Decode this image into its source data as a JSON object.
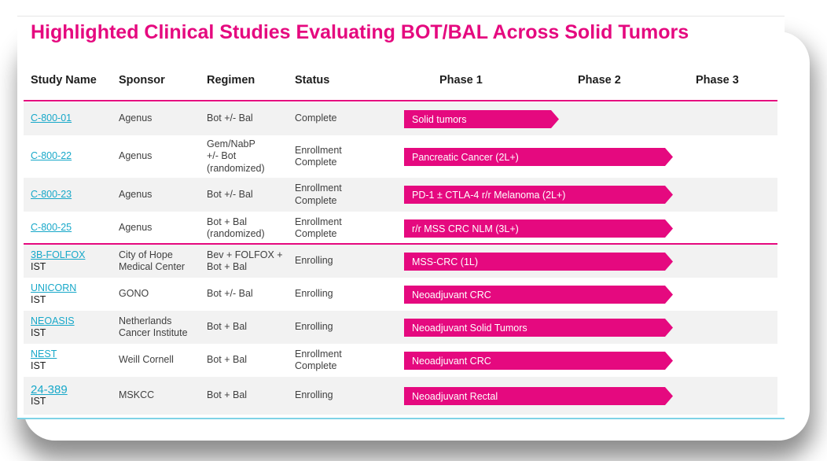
{
  "title": "Highlighted Clinical Studies Evaluating BOT/BAL Across Solid Tumors",
  "headers": {
    "study": "Study Name",
    "sponsor": "Sponsor",
    "regimen": "Regimen",
    "status": "Status",
    "phase1": "Phase 1",
    "phase2": "Phase 2",
    "phase3": "Phase 3"
  },
  "rows": [
    {
      "study": "C-800-01",
      "ist": "",
      "sponsor": "Agenus",
      "regimen": "Bot +/- Bal",
      "status": "Complete",
      "bar_label": "Solid tumors",
      "bar_phase": 1
    },
    {
      "study": "C-800-22",
      "ist": "",
      "sponsor": "Agenus",
      "regimen": "Gem/NabP\n+/- Bot\n(randomized)",
      "status": "Enrollment\nComplete",
      "bar_label": "Pancreatic Cancer (2L+)",
      "bar_phase": 2
    },
    {
      "study": "C-800-23",
      "ist": "",
      "sponsor": "Agenus",
      "regimen": "Bot +/- Bal",
      "status": "Enrollment\nComplete",
      "bar_label": "PD-1 ± CTLA-4 r/r Melanoma (2L+)",
      "bar_phase": 2
    },
    {
      "study": "C-800-25",
      "ist": "",
      "sponsor": "Agenus",
      "regimen": "Bot + Bal\n(randomized)",
      "status": "Enrollment\nComplete",
      "bar_label": "r/r MSS CRC NLM (3L+)",
      "bar_phase": 2
    },
    {
      "study": "3B-FOLFOX",
      "ist": "IST",
      "sponsor": "City of Hope\nMedical Center",
      "regimen": "Bev + FOLFOX +\nBot + Bal",
      "status": "Enrolling",
      "bar_label": "MSS-CRC (1L)",
      "bar_phase": 2
    },
    {
      "study": "UNICORN",
      "ist": "IST",
      "sponsor": "GONO",
      "regimen": "Bot +/- Bal",
      "status": "Enrolling",
      "bar_label": "Neoadjuvant CRC",
      "bar_phase": 2
    },
    {
      "study": "NEOASIS",
      "ist": "IST",
      "sponsor": "Netherlands\nCancer Institute",
      "regimen": "Bot + Bal",
      "status": "Enrolling",
      "bar_label": "Neoadjuvant Solid Tumors",
      "bar_phase": 2
    },
    {
      "study": "NEST",
      "ist": "IST",
      "sponsor": "Weill Cornell",
      "regimen": "Bot + Bal",
      "status": "Enrollment\nComplete",
      "bar_label": "Neoadjuvant CRC",
      "bar_phase": 2
    },
    {
      "study": "24-389",
      "ist": "IST",
      "sponsor": "MSKCC",
      "regimen": "Bot + Bal",
      "status": "Enrolling",
      "bar_label": "Neoadjuvant Rectal",
      "bar_phase": 2
    }
  ],
  "colors": {
    "accent": "#e5097f",
    "link": "#17a8c9",
    "row_shade": "#f2f2f2"
  }
}
